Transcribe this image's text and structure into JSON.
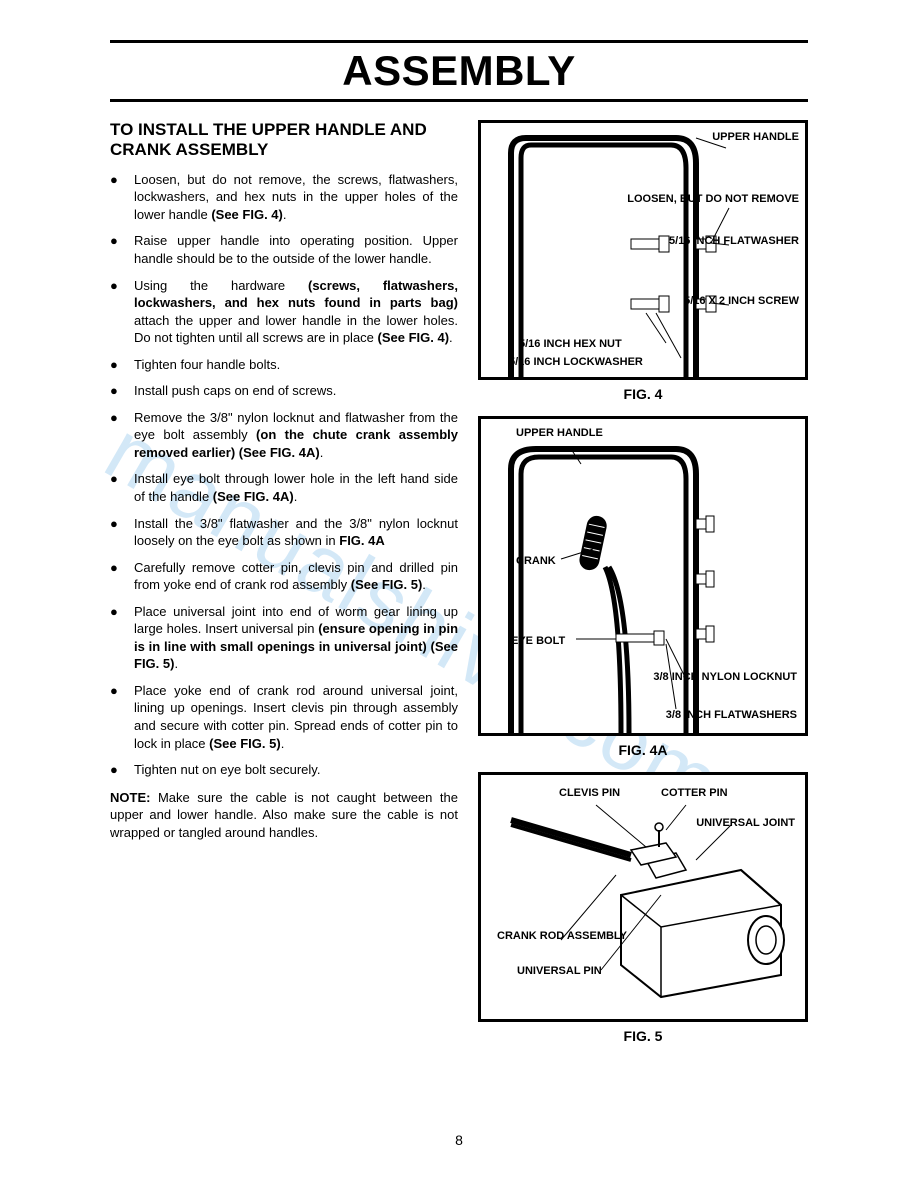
{
  "title": "ASSEMBLY",
  "section_heading": "TO INSTALL THE UPPER HANDLE AND CRANK ASSEMBLY",
  "bullets": [
    {
      "pre": "Loosen, but do not remove, the screws, flatwashers, lockwashers, and hex nuts in the upper holes of the lower handle ",
      "bold": "(See FIG. 4)",
      "post": "."
    },
    {
      "pre": "Raise upper handle into operating position. Upper handle should be to the outside of the lower handle.",
      "bold": "",
      "post": ""
    },
    {
      "pre": "Using the hardware ",
      "bold": "(screws, flatwashers, lockwashers, and hex nuts found in parts bag)",
      "post": " attach the upper and lower handle in the lower holes. Do not tighten until all screws are in place ",
      "bold2": "(See FIG. 4)",
      "post2": "."
    },
    {
      "pre": "Tighten four handle bolts.",
      "bold": "",
      "post": ""
    },
    {
      "pre": "Install push caps on end of screws.",
      "bold": "",
      "post": ""
    },
    {
      "pre": "Remove the 3/8\" nylon locknut and flatwasher from the eye bolt assembly ",
      "bold": "(on the chute crank assembly removed earlier) (See FIG. 4A)",
      "post": "."
    },
    {
      "pre": "Install eye bolt through lower hole in the left hand side of the handle ",
      "bold": "(See FIG. 4A)",
      "post": "."
    },
    {
      "pre": "Install the 3/8\" flatwasher and the 3/8\" nylon locknut loosely on the eye bolt as shown in ",
      "bold": "FIG. 4A",
      "post": ""
    },
    {
      "pre": "Carefully remove cotter pin, clevis pin and drilled pin from yoke end of crank rod assembly ",
      "bold": "(See FIG. 5)",
      "post": "."
    },
    {
      "pre": "Place universal joint into end of worm gear lining up large holes. Insert universal pin ",
      "bold": "(ensure opening in pin is in line with small openings in universal joint) (See FIG. 5)",
      "post": "."
    },
    {
      "pre": "Place yoke end of crank rod around universal joint, lining up openings. Insert clevis pin through assembly and secure with cotter pin. Spread ends of cotter pin to lock in place ",
      "bold": "(See FIG. 5)",
      "post": "."
    },
    {
      "pre": "Tighten nut on eye bolt securely.",
      "bold": "",
      "post": ""
    }
  ],
  "note_label": "NOTE:",
  "note_text": " Make sure the cable is not caught between the upper and lower handle. Also make sure the cable is not wrapped or tangled around handles.",
  "fig4": {
    "caption": "FIG. 4",
    "labels": {
      "upper_handle": "UPPER HANDLE",
      "loosen": "LOOSEN, BUT DO NOT REMOVE",
      "flatwasher": "5/16 INCH FLATWASHER",
      "screw": "5/16 X 2 INCH SCREW",
      "hexnut": "5/16 INCH HEX NUT",
      "lockwasher": "5/16 INCH LOCKWASHER"
    }
  },
  "fig4a": {
    "caption": "FIG. 4A",
    "labels": {
      "upper_handle": "UPPER HANDLE",
      "crank": "CRANK",
      "eyebolt": "EYE BOLT",
      "locknut": "3/8 INCH NYLON LOCKNUT",
      "flatwashers": "3/8 INCH FLATWASHERS"
    }
  },
  "fig5": {
    "caption": "FIG. 5",
    "labels": {
      "clevis": "CLEVIS PIN",
      "cotter": "COTTER PIN",
      "universal_joint": "UNIVERSAL JOINT",
      "crank_rod": "CRANK ROD ASSEMBLY",
      "universal_pin": "UNIVERSAL PIN"
    }
  },
  "page_number": "8",
  "watermark": "manualshive.com"
}
